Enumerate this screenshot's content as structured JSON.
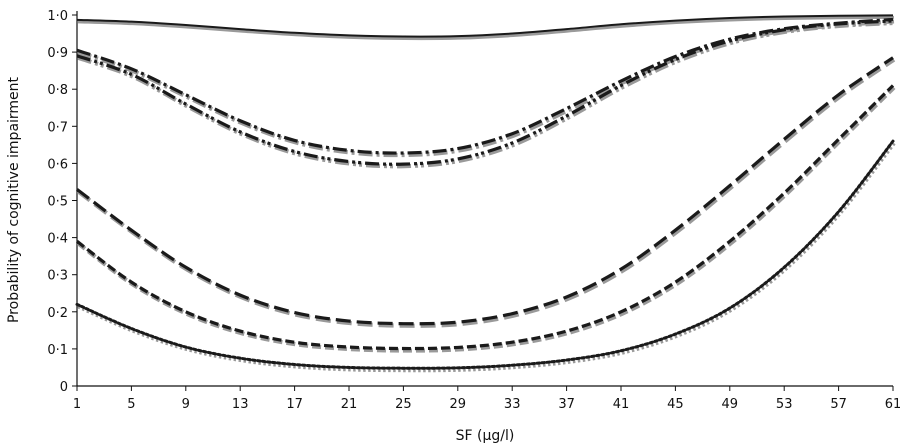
{
  "chart_data": {
    "type": "line",
    "xlabel": "SF (µg/l)",
    "ylabel": "Probability of cognitive impairment",
    "xlim": [
      1,
      61
    ],
    "ylim": [
      0,
      1.0
    ],
    "x_ticks": [
      1,
      5,
      9,
      13,
      17,
      21,
      25,
      29,
      33,
      37,
      41,
      45,
      49,
      53,
      57,
      61
    ],
    "y_ticks": [
      0,
      0.1,
      0.2,
      0.3,
      0.4,
      0.5,
      0.6,
      0.7,
      0.8,
      0.9,
      1.0
    ],
    "y_tick_labels": [
      "0",
      "0·1",
      "0·2",
      "0·3",
      "0·4",
      "0·5",
      "0·6",
      "0·7",
      "0·8",
      "0·9",
      "1·0"
    ],
    "x_tick_labels": [
      "1",
      "5",
      "9",
      "13",
      "17",
      "21",
      "25",
      "29",
      "33",
      "37",
      "41",
      "45",
      "49",
      "53",
      "57",
      "61"
    ],
    "legend": "none",
    "grid": false,
    "series": [
      {
        "style": "solid",
        "x": [
          1,
          5,
          9,
          13,
          17,
          21,
          25,
          29,
          33,
          37,
          41,
          45,
          49,
          53,
          57,
          61
        ],
        "values": [
          0.987,
          0.982,
          0.973,
          0.962,
          0.952,
          0.945,
          0.942,
          0.943,
          0.95,
          0.962,
          0.975,
          0.985,
          0.992,
          0.996,
          0.998,
          0.999
        ]
      },
      {
        "style": "dash-dot",
        "x": [
          1,
          5,
          9,
          13,
          17,
          21,
          25,
          29,
          33,
          37,
          41,
          45,
          49,
          53,
          57,
          61
        ],
        "values": [
          0.905,
          0.855,
          0.785,
          0.715,
          0.662,
          0.635,
          0.628,
          0.64,
          0.68,
          0.748,
          0.822,
          0.888,
          0.935,
          0.963,
          0.978,
          0.988
        ]
      },
      {
        "style": "dash-dot-dot",
        "x": [
          1,
          5,
          9,
          13,
          17,
          21,
          25,
          29,
          33,
          37,
          41,
          45,
          49,
          53,
          57,
          61
        ],
        "values": [
          0.89,
          0.84,
          0.76,
          0.685,
          0.632,
          0.605,
          0.598,
          0.612,
          0.655,
          0.728,
          0.81,
          0.88,
          0.93,
          0.96,
          0.976,
          0.984
        ]
      },
      {
        "style": "long-dash",
        "x": [
          1,
          5,
          9,
          13,
          17,
          21,
          25,
          29,
          33,
          37,
          41,
          45,
          49,
          53,
          57,
          61
        ],
        "values": [
          0.53,
          0.42,
          0.32,
          0.245,
          0.198,
          0.175,
          0.168,
          0.172,
          0.195,
          0.24,
          0.315,
          0.42,
          0.54,
          0.665,
          0.785,
          0.885
        ]
      },
      {
        "style": "short-dash",
        "x": [
          1,
          5,
          9,
          13,
          17,
          21,
          25,
          29,
          33,
          37,
          41,
          45,
          49,
          53,
          57,
          61
        ],
        "values": [
          0.39,
          0.28,
          0.2,
          0.148,
          0.118,
          0.105,
          0.101,
          0.104,
          0.118,
          0.148,
          0.2,
          0.28,
          0.39,
          0.52,
          0.665,
          0.81
        ]
      },
      {
        "style": "dotted",
        "x": [
          1,
          5,
          9,
          13,
          17,
          21,
          25,
          29,
          33,
          37,
          41,
          45,
          49,
          53,
          57,
          61
        ],
        "values": [
          0.22,
          0.155,
          0.105,
          0.075,
          0.058,
          0.05,
          0.048,
          0.049,
          0.056,
          0.07,
          0.095,
          0.14,
          0.21,
          0.32,
          0.47,
          0.66
        ]
      }
    ]
  }
}
